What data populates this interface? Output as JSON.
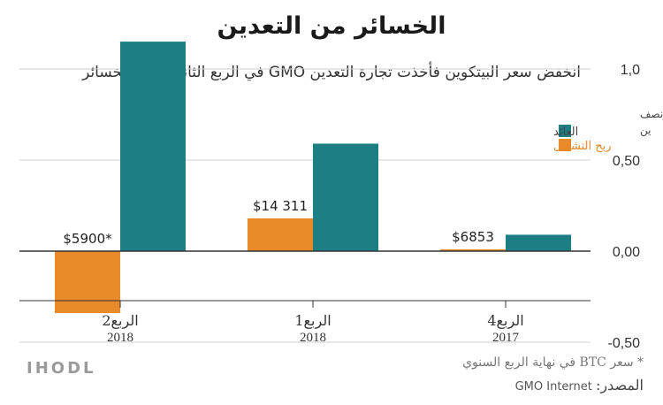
{
  "title": "الخسائر من التعدين",
  "subtitle": "انخفض سعر البيتكوين فأخذت تجارة التعدين GMO في الربع الثاني تأتي بالخسائر",
  "footnote": "* سعر BTC في نهاية الربع السنوي",
  "source_label": "المصدر:",
  "source_value": "GMO Internet",
  "brand": "IHODL",
  "colors": {
    "revenue": "#1d7e84",
    "operating_profit": "#e88a2a",
    "grid": "#cfcfcf",
    "zero_line": "#333333"
  },
  "chart_data": {
    "type": "bar",
    "ylabel": "مليار ونصف ين",
    "ylim": [
      -0.5,
      1.5
    ],
    "yticks": [
      1.0,
      0.5,
      0.0,
      -0.5
    ],
    "ytick_labels": [
      "1,0",
      "0,50",
      "0,00",
      "-0,50"
    ],
    "categories": [
      {
        "line1": "الربع2",
        "line2": "2018"
      },
      {
        "line1": "الربع1",
        "line2": "2018"
      },
      {
        "line1": "الربع4",
        "line2": "2017"
      }
    ],
    "series": [
      {
        "name": "ربح التشغيل",
        "values": [
          -0.34,
          0.18,
          0.01
        ]
      },
      {
        "name": "العائد",
        "values": [
          1.15,
          0.59,
          0.09
        ]
      }
    ],
    "annotations": [
      "$5900*",
      "$14 311",
      "$6853"
    ],
    "legend_position": "top-right"
  }
}
